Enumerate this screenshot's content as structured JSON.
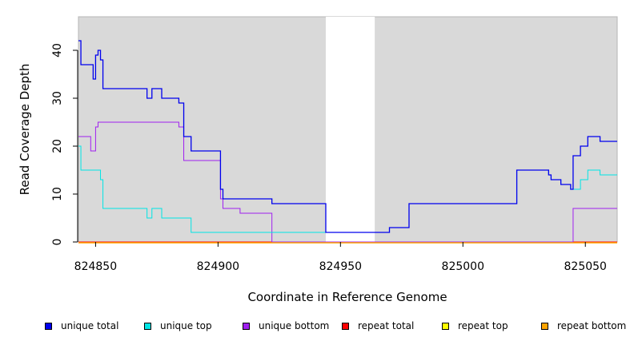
{
  "chart_data": {
    "type": "line",
    "title": "",
    "xlabel": "Coordinate in Reference Genome",
    "ylabel": "Read Coverage Depth",
    "xlim": [
      824843,
      825063
    ],
    "ylim": [
      0,
      47
    ],
    "x_ticks": [
      "824850",
      "824900",
      "824950",
      "825000",
      "825050"
    ],
    "y_ticks": [
      "0",
      "10",
      "20",
      "30",
      "40"
    ],
    "background": "#d9d9d9",
    "no_data_region": [
      824944,
      824964
    ],
    "grid": false,
    "legend_position": "bottom",
    "series": [
      {
        "name": "unique total",
        "color": "#0000ee",
        "step": true,
        "x": [
          824843,
          824844,
          824848,
          824849,
          824850,
          824851,
          824852,
          824853,
          824871,
          824873,
          824877,
          824884,
          824886,
          824889,
          824901,
          824902,
          824907,
          824922,
          824944,
          824964,
          824970,
          824978,
          825022,
          825035,
          825036,
          825040,
          825044,
          825045,
          825046,
          825048,
          825051,
          825056,
          825063
        ],
        "y": [
          42,
          37,
          37,
          34,
          39,
          40,
          38,
          32,
          30,
          32,
          30,
          29,
          22,
          19,
          11,
          9,
          9,
          8,
          2,
          2,
          3,
          8,
          15,
          14,
          13,
          12,
          11,
          18,
          18,
          20,
          22,
          21,
          21
        ]
      },
      {
        "name": "unique top",
        "color": "#00e5e5",
        "step": true,
        "x": [
          824843,
          824844,
          824852,
          824853,
          824871,
          824873,
          824877,
          824889,
          824922,
          824964,
          824970,
          824978,
          825022,
          825035,
          825036,
          825040,
          825044,
          825045,
          825046,
          825048,
          825051,
          825056,
          825063
        ],
        "y": [
          20,
          15,
          13,
          7,
          5,
          7,
          5,
          2,
          2,
          2,
          3,
          8,
          15,
          14,
          13,
          12,
          11,
          11,
          11,
          13,
          15,
          14,
          14
        ]
      },
      {
        "name": "unique bottom",
        "color": "#a020f0",
        "step": true,
        "x": [
          824843,
          824848,
          824850,
          824851,
          824884,
          824886,
          824901,
          824902,
          824909,
          824922,
          825045,
          825063
        ],
        "y": [
          22,
          19,
          24,
          25,
          24,
          17,
          9,
          7,
          6,
          0,
          7,
          7
        ]
      },
      {
        "name": "repeat total",
        "color": "#ff0000",
        "step": true,
        "x": [
          824843,
          825063
        ],
        "y": [
          0,
          0
        ]
      },
      {
        "name": "repeat top",
        "color": "#ffff00",
        "step": true,
        "x": [
          824843,
          825063
        ],
        "y": [
          0,
          0
        ]
      },
      {
        "name": "repeat bottom",
        "color": "#ffa500",
        "step": true,
        "x": [
          824843,
          825063
        ],
        "y": [
          0,
          0
        ]
      }
    ]
  }
}
